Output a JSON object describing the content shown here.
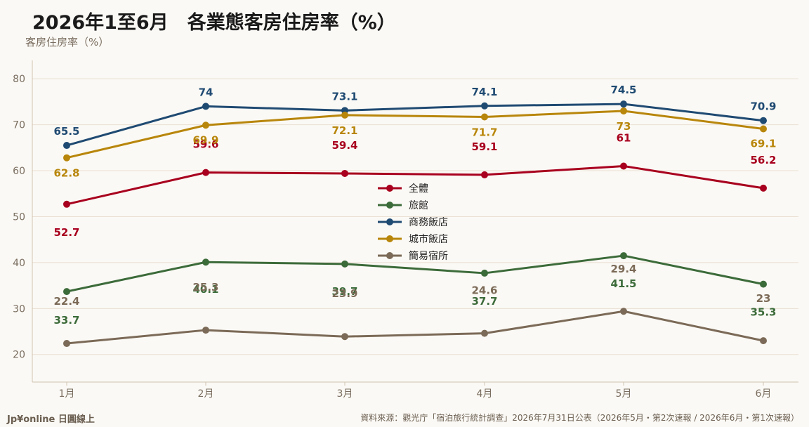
{
  "title": "2026年1至6月　各業態客房住房率（%）",
  "footer": {
    "brand": "Jp¥online 日圓線上",
    "source": "資料來源：觀光庁「宿泊旅行統計調查」2026年7月31日公表（2026年5月・第2次速報 / 2026年6月・第1次速報）"
  },
  "chart_data": {
    "type": "line",
    "ylabel": "客房住房率（%）",
    "categories": [
      "1月",
      "2月",
      "3月",
      "4月",
      "5月",
      "6月"
    ],
    "ylim": [
      14,
      84
    ],
    "yticks": [
      20,
      30,
      40,
      50,
      60,
      70,
      80
    ],
    "grid": true,
    "legend_position": "center",
    "series": [
      {
        "name": "全體",
        "color": "#a8001e",
        "values": [
          52.7,
          59.6,
          59.4,
          59.1,
          61,
          56.2
        ]
      },
      {
        "name": "旅館",
        "color": "#3c6b3a",
        "values": [
          33.7,
          40.1,
          39.7,
          37.7,
          41.5,
          35.3
        ]
      },
      {
        "name": "商務飯店",
        "color": "#1f4a72",
        "values": [
          65.5,
          74,
          73.1,
          74.1,
          74.5,
          70.9
        ]
      },
      {
        "name": "城市飯店",
        "color": "#b8860b",
        "values": [
          62.8,
          69.9,
          72.1,
          71.7,
          73,
          69.1
        ]
      },
      {
        "name": "簡易宿所",
        "color": "#7b6a57",
        "values": [
          22.4,
          25.3,
          23.9,
          24.6,
          29.4,
          23
        ]
      }
    ]
  }
}
